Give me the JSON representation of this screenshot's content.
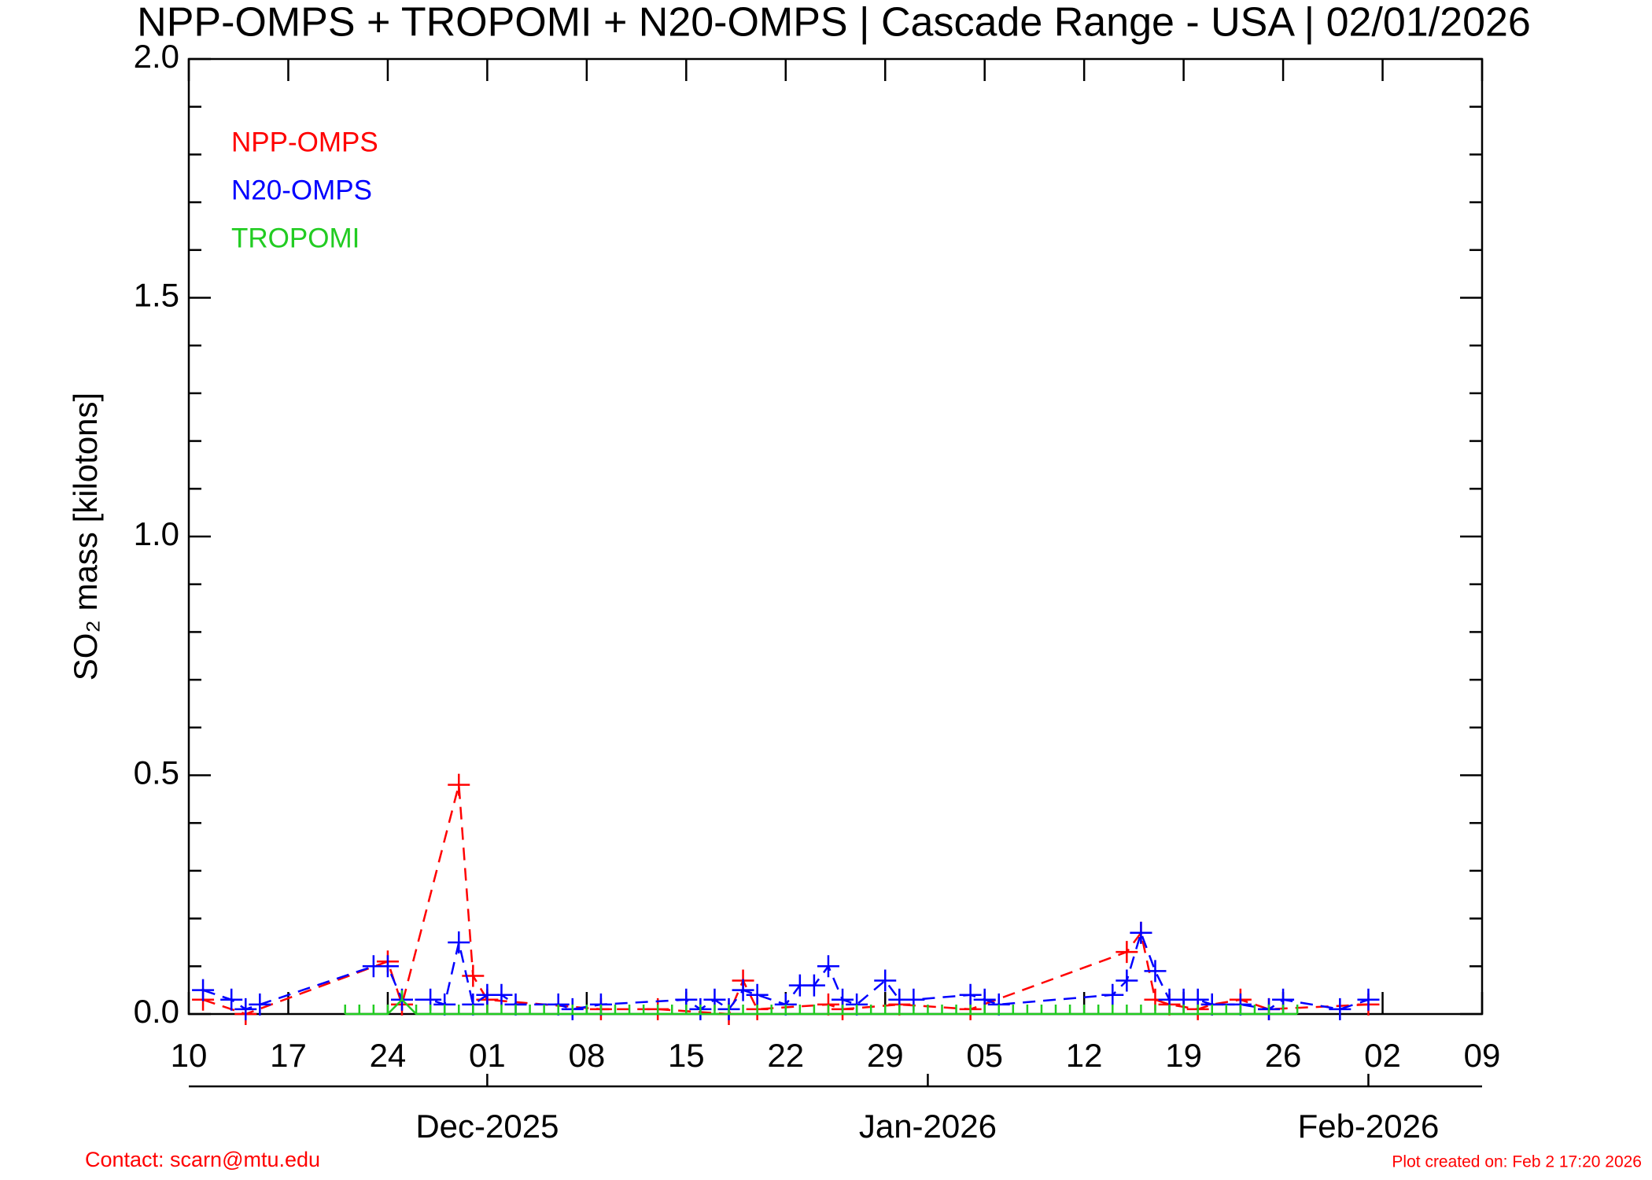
{
  "chart_data": {
    "type": "line",
    "title": "NPP-OMPS + TROPOMI + N20-OMPS | Cascade Range - USA | 02/01/2026",
    "y_label": "SO₂ mass [kilotons]",
    "footer_left": "Contact: scarn@mtu.edu",
    "footer_right": "Plot created on: Feb  2 17:20 2026",
    "xlim": [
      "2025-11-10",
      "2026-02-09"
    ],
    "xticks": [
      {
        "value": "2025-11-10",
        "label": "10"
      },
      {
        "value": "2025-11-17",
        "label": "17"
      },
      {
        "value": "2025-11-24",
        "label": "24"
      },
      {
        "value": "2025-12-01",
        "label": "01"
      },
      {
        "value": "2025-12-08",
        "label": "08"
      },
      {
        "value": "2025-12-15",
        "label": "15"
      },
      {
        "value": "2025-12-22",
        "label": "22"
      },
      {
        "value": "2025-12-29",
        "label": "29"
      },
      {
        "value": "2026-01-05",
        "label": "05"
      },
      {
        "value": "2026-01-12",
        "label": "12"
      },
      {
        "value": "2026-01-19",
        "label": "19"
      },
      {
        "value": "2026-01-26",
        "label": "26"
      },
      {
        "value": "2026-02-02",
        "label": "02"
      },
      {
        "value": "2026-02-09",
        "label": "09"
      }
    ],
    "month_ticks": [
      {
        "value": "2025-12-01",
        "label": "Dec-2025"
      },
      {
        "value": "2026-01-01",
        "label": "Jan-2026"
      },
      {
        "value": "2026-02-01",
        "label": "Feb-2026"
      }
    ],
    "ylim": [
      0,
      2
    ],
    "yticks": [
      {
        "value": 0,
        "label": "0.0"
      },
      {
        "value": 0.5,
        "label": "0.5"
      },
      {
        "value": 1,
        "label": "1.0"
      },
      {
        "value": 1.5,
        "label": "1.5"
      },
      {
        "value": 2,
        "label": "2.0"
      }
    ],
    "yminorticks": [
      0.1,
      0.2,
      0.3,
      0.4,
      0.6,
      0.7,
      0.8,
      0.9,
      1.1,
      1.2,
      1.3,
      1.4,
      1.6,
      1.7,
      1.8,
      1.9
    ],
    "series": [
      {
        "name": "NPP-OMPS",
        "color": "#ff0000",
        "linestyle": "dashed",
        "marker": "plus",
        "x": [
          "2025-11-11",
          "2025-11-14",
          "2025-11-24",
          "2025-11-25",
          "2025-11-29",
          "2025-11-30",
          "2025-12-01",
          "2025-12-09",
          "2025-12-13",
          "2025-12-18",
          "2025-12-19",
          "2025-12-20",
          "2025-12-25",
          "2025-12-26",
          "2025-12-30",
          "2026-01-04",
          "2026-01-15",
          "2026-01-16",
          "2026-01-17",
          "2026-01-18",
          "2026-01-20",
          "2026-01-21",
          "2026-01-23",
          "2026-01-25",
          "2026-02-01"
        ],
        "values": [
          0.03,
          0.0,
          0.11,
          0.02,
          0.48,
          0.08,
          0.03,
          0.01,
          0.01,
          0.0,
          0.07,
          0.01,
          0.02,
          0.01,
          0.02,
          0.01,
          0.13,
          0.17,
          0.03,
          0.02,
          0.01,
          0.02,
          0.03,
          0.01,
          0.02
        ]
      },
      {
        "name": "N20-OMPS",
        "color": "#0000ff",
        "linestyle": "dashed",
        "marker": "plus",
        "x": [
          "2025-11-11",
          "2025-11-13",
          "2025-11-14",
          "2025-11-15",
          "2025-11-23",
          "2025-11-24",
          "2025-11-25",
          "2025-11-27",
          "2025-11-28",
          "2025-11-29",
          "2025-11-30",
          "2025-12-01",
          "2025-12-02",
          "2025-12-03",
          "2025-12-06",
          "2025-12-07",
          "2025-12-09",
          "2025-12-15",
          "2025-12-16",
          "2025-12-17",
          "2025-12-18",
          "2025-12-19",
          "2025-12-20",
          "2025-12-22",
          "2025-12-23",
          "2025-12-24",
          "2025-12-25",
          "2025-12-26",
          "2025-12-27",
          "2025-12-29",
          "2025-12-30",
          "2025-12-31",
          "2026-01-04",
          "2026-01-05",
          "2026-01-06",
          "2026-01-14",
          "2026-01-15",
          "2026-01-16",
          "2026-01-17",
          "2026-01-18",
          "2026-01-19",
          "2026-01-20",
          "2026-01-21",
          "2026-01-23",
          "2026-01-25",
          "2026-01-26",
          "2026-01-30",
          "2026-02-01"
        ],
        "values": [
          0.05,
          0.03,
          0.01,
          0.02,
          0.1,
          0.1,
          0.03,
          0.03,
          0.02,
          0.15,
          0.02,
          0.04,
          0.04,
          0.02,
          0.02,
          0.01,
          0.02,
          0.03,
          0.01,
          0.03,
          0.01,
          0.05,
          0.04,
          0.02,
          0.06,
          0.06,
          0.1,
          0.03,
          0.02,
          0.07,
          0.03,
          0.03,
          0.04,
          0.03,
          0.02,
          0.04,
          0.07,
          0.17,
          0.09,
          0.03,
          0.03,
          0.03,
          0.02,
          0.02,
          0.01,
          0.03,
          0.01,
          0.03
        ]
      },
      {
        "name": "TROPOMI",
        "color": "#22cc22",
        "linestyle": "solid",
        "marker": "tick",
        "x": [
          "2025-11-21",
          "2025-11-22",
          "2025-11-23",
          "2025-11-24",
          "2025-11-25",
          "2025-11-26",
          "2025-11-27",
          "2025-11-28",
          "2025-11-29",
          "2025-11-30",
          "2025-12-01",
          "2025-12-02",
          "2025-12-03",
          "2025-12-04",
          "2025-12-05",
          "2025-12-06",
          "2025-12-07",
          "2025-12-08",
          "2025-12-09",
          "2025-12-10",
          "2025-12-11",
          "2025-12-12",
          "2025-12-13",
          "2025-12-14",
          "2025-12-15",
          "2025-12-16",
          "2025-12-17",
          "2025-12-18",
          "2025-12-19",
          "2025-12-20",
          "2025-12-21",
          "2025-12-22",
          "2025-12-23",
          "2025-12-24",
          "2025-12-25",
          "2025-12-26",
          "2025-12-27",
          "2025-12-28",
          "2025-12-29",
          "2025-12-30",
          "2025-12-31",
          "2026-01-01",
          "2026-01-02",
          "2026-01-03",
          "2026-01-04",
          "2026-01-05",
          "2026-01-06",
          "2026-01-07",
          "2026-01-08",
          "2026-01-09",
          "2026-01-10",
          "2026-01-11",
          "2026-01-12",
          "2026-01-13",
          "2026-01-14",
          "2026-01-15",
          "2026-01-16",
          "2026-01-17",
          "2026-01-18",
          "2026-01-19",
          "2026-01-20",
          "2026-01-21",
          "2026-01-22",
          "2026-01-23",
          "2026-01-24",
          "2026-01-25",
          "2026-01-26",
          "2026-01-27"
        ],
        "values": [
          0,
          0,
          0,
          0,
          0.03,
          0,
          0,
          0,
          0,
          0,
          0,
          0,
          0,
          0,
          0,
          0,
          0,
          0,
          0,
          0,
          0,
          0,
          0,
          0,
          0,
          0,
          0,
          0,
          0,
          0,
          0,
          0,
          0,
          0,
          0,
          0,
          0,
          0,
          0,
          0,
          0,
          0,
          0,
          0,
          0,
          0,
          0,
          0,
          0,
          0,
          0,
          0,
          0,
          0,
          0,
          0,
          0,
          0,
          0,
          0,
          0,
          0,
          0,
          0,
          0,
          0,
          0,
          0
        ]
      }
    ]
  }
}
